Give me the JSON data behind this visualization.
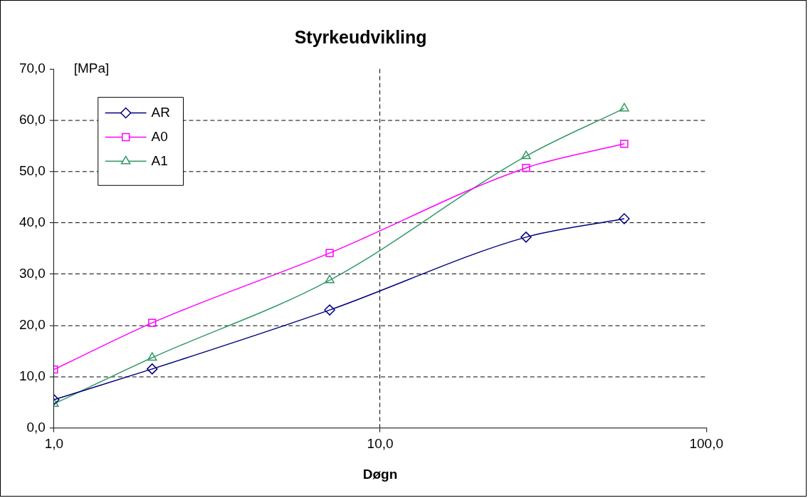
{
  "chart_data": {
    "type": "line",
    "title": "Styrkeudvikling",
    "xlabel": "Døgn",
    "ylabel": "[MPa]",
    "x": [
      1,
      2,
      7,
      28,
      56
    ],
    "series": [
      {
        "name": "AR",
        "color": "#000080",
        "marker": "diamond",
        "values": [
          5.5,
          11.5,
          23.0,
          37.2,
          40.8
        ]
      },
      {
        "name": "A0",
        "color": "#ff00ff",
        "marker": "square",
        "values": [
          11.4,
          20.5,
          34.1,
          50.7,
          55.4
        ]
      },
      {
        "name": "A1",
        "color": "#339966",
        "marker": "triangle",
        "values": [
          4.7,
          13.7,
          28.8,
          53.0,
          62.3
        ]
      }
    ],
    "log": "x",
    "xlim": [
      1,
      100
    ],
    "xticks": [
      {
        "value": 1,
        "label": "1,0"
      },
      {
        "value": 10,
        "label": "10,0"
      },
      {
        "value": 100,
        "label": "100,0"
      }
    ],
    "ylim": [
      0,
      70
    ],
    "yticks": [
      {
        "value": 0,
        "label": "0,0"
      },
      {
        "value": 10,
        "label": "10,0"
      },
      {
        "value": 20,
        "label": "20,0"
      },
      {
        "value": 30,
        "label": "30,0"
      },
      {
        "value": 40,
        "label": "40,0"
      },
      {
        "value": 50,
        "label": "50,0"
      },
      {
        "value": 60,
        "label": "60,0"
      },
      {
        "value": 70,
        "label": "70,0"
      }
    ],
    "grid": true,
    "line_style": "solid",
    "legend": "top left"
  }
}
